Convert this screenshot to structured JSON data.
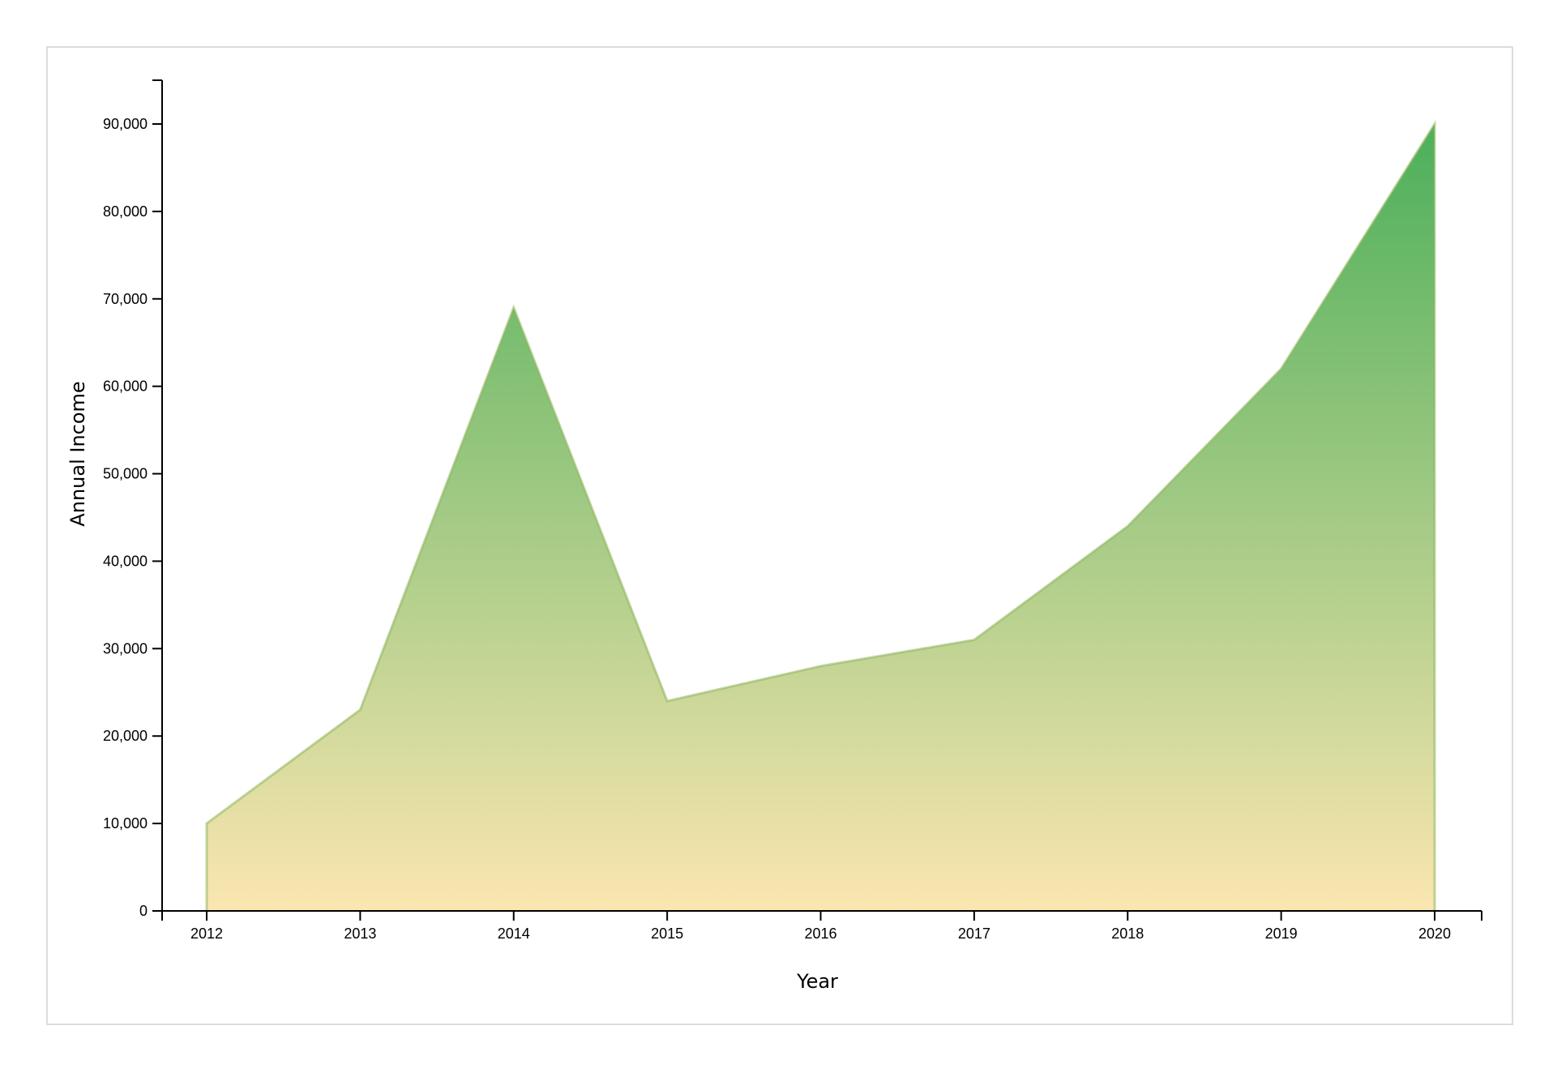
{
  "chart_data": {
    "type": "area",
    "xlabel": "Year",
    "ylabel": "Annual Income",
    "x": [
      2012,
      2013,
      2014,
      2015,
      2016,
      2017,
      2018,
      2019,
      2020
    ],
    "series": [
      {
        "values": [
          10000,
          23000,
          69000,
          24000,
          28000,
          31000,
          44000,
          62000,
          90000
        ]
      }
    ],
    "ylim": [
      0,
      95000
    ],
    "yticks": [
      0,
      10000,
      20000,
      30000,
      40000,
      50000,
      60000,
      70000,
      80000,
      90000
    ],
    "ytick_labels": [
      "0",
      "10,000",
      "20,000",
      "30,000",
      "40,000",
      "50,000",
      "60,000",
      "70,000",
      "80,000",
      "90,000"
    ],
    "xtick_labels": [
      "2012",
      "2013",
      "2014",
      "2015",
      "2016",
      "2017",
      "2018",
      "2019",
      "2020"
    ],
    "grid": false,
    "colors": {
      "gradient_bottom": "#fbe6b0",
      "gradient_top": "#4caf5a",
      "axis": "#000000"
    }
  }
}
